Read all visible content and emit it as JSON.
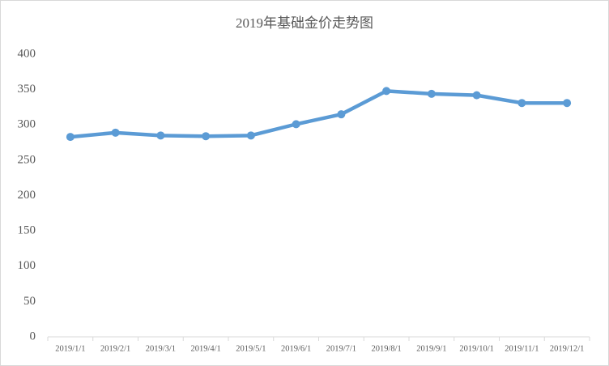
{
  "chart_data": {
    "type": "line",
    "title": "2019年基础金价走势图",
    "categories": [
      "2019/1/1",
      "2019/2/1",
      "2019/3/1",
      "2019/4/1",
      "2019/5/1",
      "2019/6/1",
      "2019/7/1",
      "2019/8/1",
      "2019/9/1",
      "2019/10/1",
      "2019/11/1",
      "2019/12/1"
    ],
    "values": [
      283,
      289,
      285,
      284,
      285,
      301,
      315,
      348,
      344,
      342,
      331,
      331
    ],
    "color": "#5b9bd5",
    "ylim": [
      0,
      400
    ],
    "yticks": [
      0,
      50,
      100,
      150,
      200,
      250,
      300,
      350,
      400
    ],
    "grid": false
  }
}
